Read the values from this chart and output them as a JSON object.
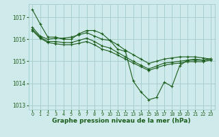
{
  "title": "Graphe pression niveau de la mer (hPa)",
  "bg_color": "#ceeaea",
  "grid_color": "#a8cece",
  "line_color": "#1a5c1a",
  "xlim": [
    -0.5,
    23.5
  ],
  "ylim": [
    1012.8,
    1017.6
  ],
  "yticks": [
    1013,
    1014,
    1015,
    1016,
    1017
  ],
  "xticks": [
    0,
    1,
    2,
    3,
    4,
    5,
    6,
    7,
    8,
    9,
    10,
    11,
    12,
    13,
    14,
    15,
    16,
    17,
    18,
    19,
    20,
    21,
    22,
    23
  ],
  "lines": [
    {
      "x": [
        0,
        1,
        2,
        3,
        4,
        5,
        6,
        7,
        8,
        9,
        10,
        11,
        12,
        13,
        14,
        15,
        16,
        17,
        18,
        19,
        20,
        21,
        22,
        23
      ],
      "y": [
        1017.35,
        1016.7,
        1016.1,
        1016.1,
        1016.0,
        1016.0,
        1016.25,
        1016.4,
        1016.4,
        1016.25,
        1015.95,
        1015.55,
        1015.45,
        1014.1,
        1013.6,
        1013.25,
        1013.35,
        1014.05,
        1013.85,
        1014.8,
        1015.05,
        1015.1,
        1015.05,
        1015.1
      ],
      "marker": true
    },
    {
      "x": [
        0,
        1,
        2,
        3,
        4,
        5,
        6,
        7,
        8,
        9,
        10,
        11,
        12,
        13,
        14,
        15,
        16,
        17,
        18,
        19,
        20,
        21,
        22,
        23
      ],
      "y": [
        1016.55,
        1016.15,
        1016.0,
        1016.05,
        1016.05,
        1016.1,
        1016.2,
        1016.3,
        1016.15,
        1016.0,
        1015.95,
        1015.75,
        1015.5,
        1015.3,
        1015.1,
        1014.9,
        1015.0,
        1015.1,
        1015.15,
        1015.2,
        1015.2,
        1015.2,
        1015.15,
        1015.1
      ],
      "marker": true
    },
    {
      "x": [
        0,
        1,
        2,
        3,
        4,
        5,
        6,
        7,
        8,
        9,
        10,
        11,
        12,
        13,
        14,
        15,
        16,
        17,
        18,
        19,
        20,
        21,
        22,
        23
      ],
      "y": [
        1016.45,
        1016.1,
        1015.9,
        1015.9,
        1015.85,
        1015.85,
        1015.95,
        1016.05,
        1015.9,
        1015.7,
        1015.6,
        1015.4,
        1015.2,
        1015.0,
        1014.82,
        1014.65,
        1014.78,
        1014.92,
        1014.95,
        1015.0,
        1015.05,
        1015.05,
        1015.05,
        1015.1
      ],
      "marker": true
    },
    {
      "x": [
        0,
        1,
        2,
        3,
        4,
        5,
        6,
        7,
        8,
        9,
        10,
        11,
        12,
        13,
        14,
        15,
        16,
        17,
        18,
        19,
        20,
        21,
        22,
        23
      ],
      "y": [
        1016.4,
        1016.05,
        1015.85,
        1015.8,
        1015.75,
        1015.75,
        1015.82,
        1015.9,
        1015.75,
        1015.55,
        1015.45,
        1015.28,
        1015.1,
        1014.92,
        1014.75,
        1014.58,
        1014.7,
        1014.82,
        1014.88,
        1014.92,
        1014.98,
        1014.98,
        1014.98,
        1015.05
      ],
      "marker": true
    }
  ]
}
